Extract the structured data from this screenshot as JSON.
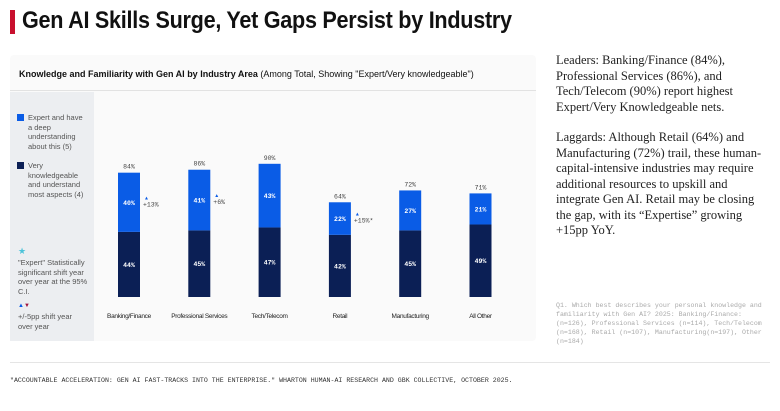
{
  "title": "Gen AI Skills Surge, Yet Gaps Persist by Industry",
  "chart_data": {
    "type": "bar",
    "stacked": true,
    "title": "Knowledge and Familiarity with Gen AI by Industry Area",
    "subtitle": "(Among Total, Showing \"Expert/Very knowledgeable\")",
    "categories": [
      "Banking/Finance",
      "Professional Services",
      "Tech/Telecom",
      "Retail",
      "Manufacturing",
      "All Other"
    ],
    "series": [
      {
        "name": "Very knowledgeable and understand most aspects (4)",
        "color": "#0b1f55",
        "values": [
          44,
          45,
          47,
          42,
          45,
          49
        ],
        "labels": [
          "44%",
          "45%",
          "47%",
          "42%",
          "45%",
          "49%"
        ]
      },
      {
        "name": "Expert and have a deep understanding about this (5)",
        "color": "#0a5ce6",
        "values": [
          40,
          41,
          43,
          22,
          27,
          21
        ],
        "labels": [
          "40%",
          "41%",
          "43%",
          "22%",
          "27%",
          "21%"
        ]
      }
    ],
    "totals": [
      "84%",
      "86%",
      "90%",
      "64%",
      "72%",
      "71%"
    ],
    "shifts": [
      "+13%",
      "+6%",
      "",
      "+15%*",
      "",
      ""
    ],
    "ylim": [
      0,
      100
    ]
  },
  "legend": {
    "expert": "Expert and have a deep understanding about this (5)",
    "very": "Very knowledgeable and understand most aspects (4)",
    "star_note": "\"Expert\" Statistically significant shift year over year at the 95% C.I.",
    "shift_note": "+/-5pp shift year over year"
  },
  "right_text": {
    "p1": "Leaders: Banking/Finance (84%), Professional Services (86%), and Tech/Telecom (90%) report highest Expert/Very Knowledgeable nets.",
    "p2": "Laggards: Although Retail (64%) and Manufacturing (72%) trail, these human-capital-intensive industries may require additional resources to upskill and integrate Gen AI. Retail may be closing the gap, with its “Expertise” growing +15pp YoY."
  },
  "note": "Q1. Which best describes your personal knowledge and familiarity with Gen AI? 2025: Banking/Finance: (n=126), Professional Services (n=114), Tech/Telecom (n=168), Retail (n=107), Manufacturing(n=197), Other (n=184)",
  "source": "\"ACCOUNTABLE ACCELERATION: GEN AI FAST-TRACKS INTO THE ENTERPRISE.\" WHARTON HUMAN-AI RESEARCH AND GBK COLLECTIVE, OCTOBER 2025."
}
